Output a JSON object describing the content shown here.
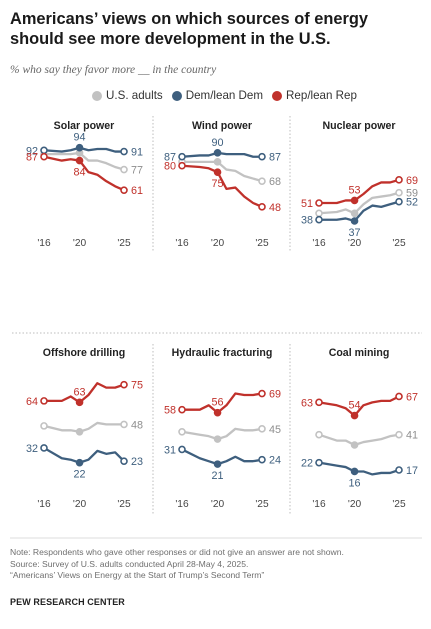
{
  "title": "Americans’ views on which sources of energy should see more development in the U.S.",
  "subtitle": "% who say they favor more __ in the country",
  "legend": [
    {
      "label": "U.S. adults",
      "color": "#c2c2c2"
    },
    {
      "label": "Dem/lean Dem",
      "color": "#3e5f7e"
    },
    {
      "label": "Rep/lean Rep",
      "color": "#c0312b"
    }
  ],
  "notes": {
    "line1": "Note: Respondents who gave other responses or did not give an answer are not shown.",
    "line2": "Source: Survey of U.S. adults conducted April 28-May 4, 2025.",
    "line3": "“Americans’ Views on Energy at the Start of Trump’s Second Term”"
  },
  "source_org": "PEW RESEARCH CENTER",
  "chart_data": [
    {
      "type": "line",
      "title": "Solar power",
      "x": [
        2016,
        2018,
        2019,
        2020,
        2021,
        2022,
        2023,
        2024,
        2025
      ],
      "xticks": [
        "'16",
        "'20",
        "'25"
      ],
      "series": [
        {
          "name": "U.S. adults",
          "values": [
            89,
            89,
            89,
            90,
            84,
            84,
            82,
            79,
            77
          ],
          "labels": {
            "8": "77"
          }
        },
        {
          "name": "Dem/lean Dem",
          "values": [
            92,
            91,
            92,
            94,
            92,
            93,
            93,
            91,
            91
          ],
          "labels": {
            "0": "92",
            "3": "94",
            "8": "91"
          }
        },
        {
          "name": "Rep/lean Rep",
          "values": [
            87,
            84,
            85,
            84,
            75,
            73,
            68,
            64,
            61
          ],
          "labels": {
            "0": "87",
            "3": "84",
            "8": "61"
          }
        }
      ]
    },
    {
      "type": "line",
      "title": "Wind power",
      "x": [
        2016,
        2018,
        2019,
        2020,
        2021,
        2022,
        2023,
        2024,
        2025
      ],
      "xticks": [
        "'16",
        "'20",
        "'25"
      ],
      "series": [
        {
          "name": "U.S. adults",
          "values": [
            83,
            83,
            83,
            83,
            77,
            76,
            72,
            70,
            68
          ],
          "labels": {
            "8": "68"
          }
        },
        {
          "name": "Dem/lean Dem",
          "values": [
            87,
            88,
            88,
            90,
            89,
            89,
            89,
            87,
            87
          ],
          "labels": {
            "0": "87",
            "3": "90",
            "8": "87"
          }
        },
        {
          "name": "Rep/lean Rep",
          "values": [
            80,
            79,
            78,
            75,
            62,
            63,
            56,
            51,
            48
          ],
          "labels": {
            "0": "80",
            "3": "75",
            "8": "48"
          }
        }
      ]
    },
    {
      "type": "line",
      "title": "Nuclear power",
      "x": [
        2016,
        2018,
        2019,
        2020,
        2021,
        2022,
        2023,
        2024,
        2025
      ],
      "xticks": [
        "'16",
        "'20",
        "'25"
      ],
      "series": [
        {
          "name": "U.S. adults",
          "values": [
            43,
            44,
            46,
            43,
            50,
            55,
            56,
            57,
            59
          ],
          "labels": {
            "8": "59"
          }
        },
        {
          "name": "Dem/lean Dem",
          "values": [
            38,
            38,
            39,
            37,
            45,
            49,
            48,
            50,
            52
          ],
          "labels": {
            "0": "38",
            "3": "37",
            "8": "52"
          }
        },
        {
          "name": "Rep/lean Rep",
          "values": [
            51,
            51,
            53,
            53,
            58,
            64,
            67,
            67,
            69
          ],
          "labels": {
            "0": "51",
            "3": "53",
            "8": "69"
          }
        }
      ]
    },
    {
      "type": "line",
      "title": "Offshore drilling",
      "x": [
        2016,
        2018,
        2019,
        2020,
        2021,
        2022,
        2023,
        2024,
        2025
      ],
      "xticks": [
        "'16",
        "'20",
        "'25"
      ],
      "series": [
        {
          "name": "U.S. adults",
          "values": [
            47,
            44,
            44,
            43,
            45,
            49,
            48,
            48,
            48
          ],
          "labels": {
            "8": "48"
          }
        },
        {
          "name": "Dem/lean Dem",
          "values": [
            32,
            25,
            24,
            22,
            24,
            30,
            28,
            29,
            23
          ],
          "labels": {
            "0": "32",
            "3": "22",
            "8": "23"
          }
        },
        {
          "name": "Rep/lean Rep",
          "values": [
            64,
            64,
            67,
            63,
            68,
            76,
            73,
            73,
            75
          ],
          "labels": {
            "0": "64",
            "3": "63",
            "8": "75"
          }
        }
      ]
    },
    {
      "type": "line",
      "title": "Hydraulic fracturing",
      "x": [
        2016,
        2018,
        2019,
        2020,
        2021,
        2022,
        2023,
        2024,
        2025
      ],
      "xticks": [
        "'16",
        "'20",
        "'25"
      ],
      "series": [
        {
          "name": "U.S. adults",
          "values": [
            43,
            41,
            40,
            38,
            40,
            45,
            44,
            44,
            45
          ],
          "labels": {
            "8": "45"
          }
        },
        {
          "name": "Dem/lean Dem",
          "values": [
            31,
            25,
            23,
            21,
            23,
            26,
            23,
            23,
            24
          ],
          "labels": {
            "0": "31",
            "3": "21",
            "8": "24"
          }
        },
        {
          "name": "Rep/lean Rep",
          "values": [
            58,
            58,
            61,
            56,
            61,
            69,
            68,
            68,
            69
          ],
          "labels": {
            "0": "58",
            "3": "56",
            "8": "69"
          }
        }
      ]
    },
    {
      "type": "line",
      "title": "Coal mining",
      "x": [
        2016,
        2018,
        2019,
        2020,
        2021,
        2022,
        2023,
        2024,
        2025
      ],
      "xticks": [
        "'16",
        "'20",
        "'25"
      ],
      "series": [
        {
          "name": "U.S. adults",
          "values": [
            41,
            37,
            37,
            34,
            36,
            37,
            38,
            40,
            41
          ],
          "labels": {
            "8": "41"
          }
        },
        {
          "name": "Dem/lean Dem",
          "values": [
            22,
            20,
            19,
            16,
            16,
            14,
            15,
            15,
            17
          ],
          "labels": {
            "0": "22",
            "3": "16",
            "8": "17"
          }
        },
        {
          "name": "Rep/lean Rep",
          "values": [
            63,
            61,
            59,
            54,
            61,
            63,
            64,
            64,
            67
          ],
          "labels": {
            "0": "63",
            "3": "54",
            "8": "67"
          }
        }
      ]
    }
  ]
}
